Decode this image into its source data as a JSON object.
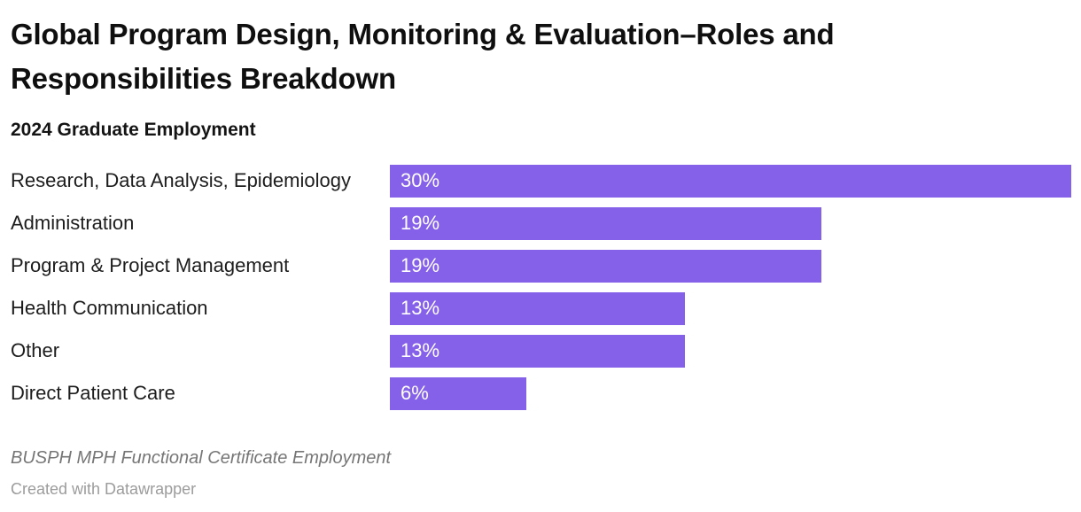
{
  "header": {
    "title": "Global Program Design, Monitoring & Evaluation–Roles and Responsibilities Breakdown",
    "title_lines": [
      "Global Program Design, Monitoring & Evaluation–Roles and",
      "Responsibilities Breakdown"
    ],
    "subtitle": "2024 Graduate Employment"
  },
  "footer": {
    "note": "BUSPH MPH Functional Certificate Employment",
    "attribution": "Created with Datawrapper"
  },
  "colors": {
    "bar": "#8560E8",
    "bar_label": "#FFFFFF",
    "title_text": "#0F0F0F",
    "category_label": "#1D1D1D",
    "note_text": "#767676",
    "attribution_text": "#9C9C9C",
    "background": "#FFFFFF"
  },
  "chart_data": {
    "type": "bar",
    "orientation": "horizontal",
    "title": "Global Program Design, Monitoring & Evaluation–Roles and Responsibilities Breakdown",
    "subtitle": "2024 Graduate Employment",
    "categories": [
      "Research, Data Analysis, Epidemiology",
      "Administration",
      "Program & Project Management",
      "Health Communication",
      "Other",
      "Direct Patient Care"
    ],
    "values": [
      30,
      19,
      19,
      13,
      13,
      6
    ],
    "value_labels": [
      "30%",
      "19%",
      "19%",
      "13%",
      "13%",
      "6%"
    ],
    "xlabel": "",
    "ylabel": "",
    "xlim": [
      0,
      30
    ],
    "grid": false,
    "legend": false,
    "bar_color": "#8560E8",
    "note": "BUSPH MPH Functional Certificate Employment",
    "attribution": "Created with Datawrapper"
  }
}
